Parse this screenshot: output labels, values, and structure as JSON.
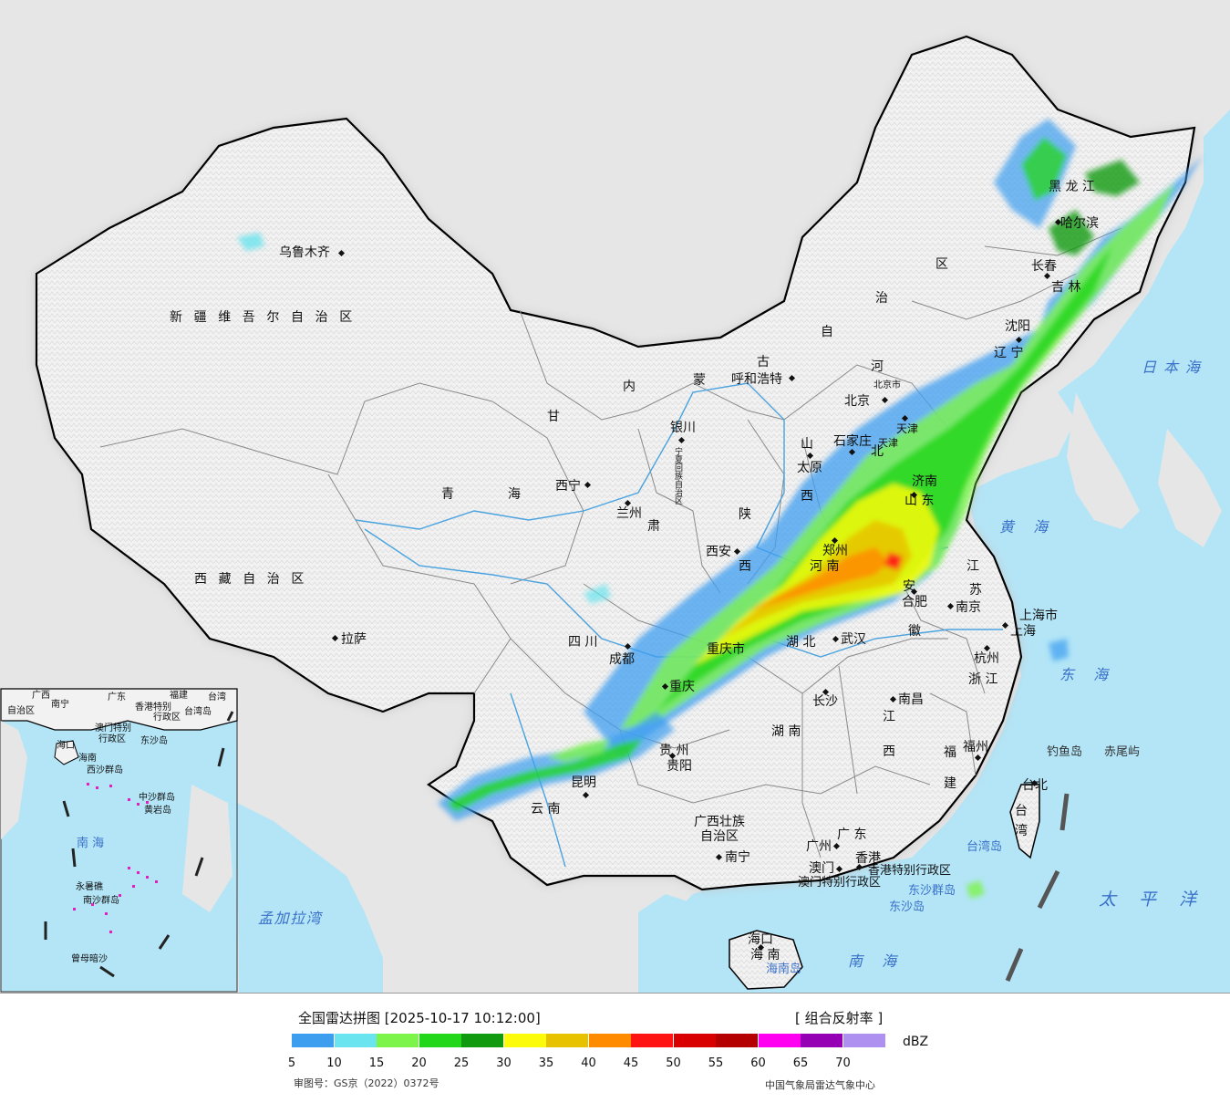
{
  "map": {
    "colors": {
      "sea": "#b3e5f7",
      "land_outside": "#e6e6e6",
      "land_china": "#f4f4f4",
      "border": "#000000",
      "province": "#8a8a8a",
      "river": "#4aa3df"
    },
    "provinces": [
      {
        "id": "xinjiang",
        "text": "新疆维吾尔自治区"
      },
      {
        "id": "xizang",
        "text": "西藏自治区"
      },
      {
        "id": "qinghai-1",
        "text": "青"
      },
      {
        "id": "qinghai-2",
        "text": "海"
      },
      {
        "id": "gansu-1",
        "text": "甘"
      },
      {
        "id": "gansu-2",
        "text": "肃"
      },
      {
        "id": "neimenggu-1",
        "text": "内"
      },
      {
        "id": "neimenggu-2",
        "text": "蒙"
      },
      {
        "id": "neimenggu-3",
        "text": "古"
      },
      {
        "id": "neimenggu-4",
        "text": "自"
      },
      {
        "id": "neimenggu-5",
        "text": "治"
      },
      {
        "id": "neimenggu-6",
        "text": "区"
      },
      {
        "id": "heilongjiang",
        "text": "黑 龙 江"
      },
      {
        "id": "jilin",
        "text": "吉 林"
      },
      {
        "id": "liaoning",
        "text": "辽 宁"
      },
      {
        "id": "hebei-1",
        "text": "河"
      },
      {
        "id": "hebei-2",
        "text": "北"
      },
      {
        "id": "shanxi-1",
        "text": "山"
      },
      {
        "id": "shanxi-2",
        "text": "西"
      },
      {
        "id": "shandong",
        "text": "山 东"
      },
      {
        "id": "henan",
        "text": "河 南"
      },
      {
        "id": "shaanxi-1",
        "text": "陕"
      },
      {
        "id": "shaanxi-2",
        "text": "西"
      },
      {
        "id": "sichuan",
        "text": "四 川"
      },
      {
        "id": "chongqing",
        "text": "重庆市"
      },
      {
        "id": "hubei",
        "text": "湖 北"
      },
      {
        "id": "anhui-1",
        "text": "安"
      },
      {
        "id": "anhui-2",
        "text": "徽"
      },
      {
        "id": "jiangsu-1",
        "text": "江"
      },
      {
        "id": "jiangsu-2",
        "text": "苏"
      },
      {
        "id": "shanghai",
        "text": "上海市"
      },
      {
        "id": "zhejiang",
        "text": "浙 江"
      },
      {
        "id": "jiangxi-1",
        "text": "江"
      },
      {
        "id": "jiangxi-2",
        "text": "西"
      },
      {
        "id": "hunan",
        "text": "湖 南"
      },
      {
        "id": "guizhou",
        "text": "贵 州"
      },
      {
        "id": "yunnan",
        "text": "云 南"
      },
      {
        "id": "guangxi-1",
        "text": "广西壮族"
      },
      {
        "id": "guangxi-2",
        "text": "自治区"
      },
      {
        "id": "guangdong",
        "text": "广 东"
      },
      {
        "id": "fujian-1",
        "text": "福"
      },
      {
        "id": "fujian-2",
        "text": "建"
      },
      {
        "id": "taiwan-1",
        "text": "台"
      },
      {
        "id": "taiwan-2",
        "text": "湾"
      },
      {
        "id": "hainan",
        "text": "海 南"
      },
      {
        "id": "ningxia",
        "text": "宁夏回族自治区"
      },
      {
        "id": "tianjin",
        "text": "天津"
      },
      {
        "id": "beijing",
        "text": "北京市"
      },
      {
        "id": "hongkong",
        "text": "香港特别行政区"
      },
      {
        "id": "macao",
        "text": "澳门特别行政区"
      }
    ],
    "cities": [
      {
        "id": "urumqi",
        "text": "乌鲁木齐"
      },
      {
        "id": "lhasa",
        "text": "拉萨"
      },
      {
        "id": "xining",
        "text": "西宁"
      },
      {
        "id": "lanzhou",
        "text": "兰州"
      },
      {
        "id": "yinchuan",
        "text": "银川"
      },
      {
        "id": "huhehaote",
        "text": "呼和浩特"
      },
      {
        "id": "harbin",
        "text": "哈尔滨"
      },
      {
        "id": "changchun",
        "text": "长春"
      },
      {
        "id": "shenyang",
        "text": "沈阳"
      },
      {
        "id": "beijing",
        "text": "北京"
      },
      {
        "id": "tianjin",
        "text": "天津"
      },
      {
        "id": "shijiazhuang",
        "text": "石家庄"
      },
      {
        "id": "taiyuan",
        "text": "太原"
      },
      {
        "id": "jinan",
        "text": "济南"
      },
      {
        "id": "zhengzhou",
        "text": "郑州"
      },
      {
        "id": "xian",
        "text": "西安"
      },
      {
        "id": "chengdu",
        "text": "成都"
      },
      {
        "id": "chongqing",
        "text": "重庆"
      },
      {
        "id": "wuhan",
        "text": "武汉"
      },
      {
        "id": "hefei",
        "text": "合肥"
      },
      {
        "id": "nanjing",
        "text": "南京"
      },
      {
        "id": "shanghai",
        "text": "上海"
      },
      {
        "id": "hangzhou",
        "text": "杭州"
      },
      {
        "id": "nanchang",
        "text": "南昌"
      },
      {
        "id": "changsha",
        "text": "长沙"
      },
      {
        "id": "guiyang",
        "text": "贵阳"
      },
      {
        "id": "kunming",
        "text": "昆明"
      },
      {
        "id": "nanning",
        "text": "南宁"
      },
      {
        "id": "guangzhou",
        "text": "广州"
      },
      {
        "id": "aomen",
        "text": "澳门"
      },
      {
        "id": "xianggang",
        "text": "香港"
      },
      {
        "id": "fuzhou",
        "text": "福州"
      },
      {
        "id": "taibei",
        "text": "台北"
      },
      {
        "id": "haikou",
        "text": "海口"
      }
    ],
    "seas": [
      {
        "id": "japan-sea",
        "text": "日本海"
      },
      {
        "id": "yellow-sea",
        "text": "黄 海"
      },
      {
        "id": "east-sea",
        "text": "东 海"
      },
      {
        "id": "pacific",
        "text": "太 平 洋"
      },
      {
        "id": "south-sea",
        "text": "南 海"
      },
      {
        "id": "bengal",
        "text": "孟加拉湾"
      }
    ],
    "islands": [
      {
        "id": "diaoyu",
        "text": "钓鱼岛"
      },
      {
        "id": "chiwei",
        "text": "赤尾屿"
      },
      {
        "id": "taiwan-island",
        "text": "台湾岛"
      },
      {
        "id": "dongsha",
        "text": "东沙群岛"
      },
      {
        "id": "dongsha-dao",
        "text": "东沙岛"
      },
      {
        "id": "hainan-dao",
        "text": "海南岛"
      }
    ],
    "inset_labels": [
      {
        "id": "i-guangxi",
        "text": "广西"
      },
      {
        "id": "i-zizhiqu",
        "text": "自治区"
      },
      {
        "id": "i-nanning",
        "text": "南宁"
      },
      {
        "id": "i-guangdong",
        "text": "广东"
      },
      {
        "id": "i-fujian",
        "text": "福建"
      },
      {
        "id": "i-taiwan",
        "text": "台湾"
      },
      {
        "id": "i-xianggang",
        "text": "香港特别"
      },
      {
        "id": "i-xzq",
        "text": "行政区"
      },
      {
        "id": "i-aomen",
        "text": "澳门特别"
      },
      {
        "id": "i-xzq2",
        "text": "行政区"
      },
      {
        "id": "i-taiwandao",
        "text": "台湾岛"
      },
      {
        "id": "i-dongsha",
        "text": "东沙岛"
      },
      {
        "id": "i-hainan",
        "text": "海南"
      },
      {
        "id": "i-haikou",
        "text": "海口"
      },
      {
        "id": "i-xisha",
        "text": "西沙群岛"
      },
      {
        "id": "i-zhongsha",
        "text": "中沙群岛"
      },
      {
        "id": "i-huangyan",
        "text": "黄岩岛"
      },
      {
        "id": "i-nanhai",
        "text": "南 海"
      },
      {
        "id": "i-yongshu",
        "text": "永暑礁"
      },
      {
        "id": "i-nansha",
        "text": "南沙群岛"
      },
      {
        "id": "i-zengmu",
        "text": "曾母暗沙"
      }
    ]
  },
  "legend": {
    "title": "全国雷达拼图 [2025-10-17 10:12:00]",
    "product": "[ 组合反射率 ]",
    "unit": "dBZ",
    "ticks": [
      "5",
      "10",
      "15",
      "20",
      "25",
      "30",
      "35",
      "40",
      "45",
      "50",
      "55",
      "60",
      "65",
      "70"
    ],
    "bins": [
      {
        "from": 5,
        "to": 10,
        "color": "#3d9ef0"
      },
      {
        "from": 10,
        "to": 15,
        "color": "#6ae4ee"
      },
      {
        "from": 15,
        "to": 20,
        "color": "#7cf44a"
      },
      {
        "from": 20,
        "to": 25,
        "color": "#22d61a"
      },
      {
        "from": 25,
        "to": 30,
        "color": "#0f9a0f"
      },
      {
        "from": 30,
        "to": 35,
        "color": "#fcfc0a"
      },
      {
        "from": 35,
        "to": 40,
        "color": "#e6c200"
      },
      {
        "from": 40,
        "to": 45,
        "color": "#ff8c00"
      },
      {
        "from": 45,
        "to": 50,
        "color": "#ff1414"
      },
      {
        "from": 50,
        "to": 55,
        "color": "#d80000"
      },
      {
        "from": 55,
        "to": 60,
        "color": "#b40000"
      },
      {
        "from": 60,
        "to": 65,
        "color": "#ff00f0"
      },
      {
        "from": 65,
        "to": 70,
        "color": "#9600b4"
      },
      {
        "from": 70,
        "to": 75,
        "color": "#ad90f0"
      }
    ],
    "approval": "审图号：GS京（2022）0372号",
    "agency": "中国气象局雷达气象中心"
  }
}
